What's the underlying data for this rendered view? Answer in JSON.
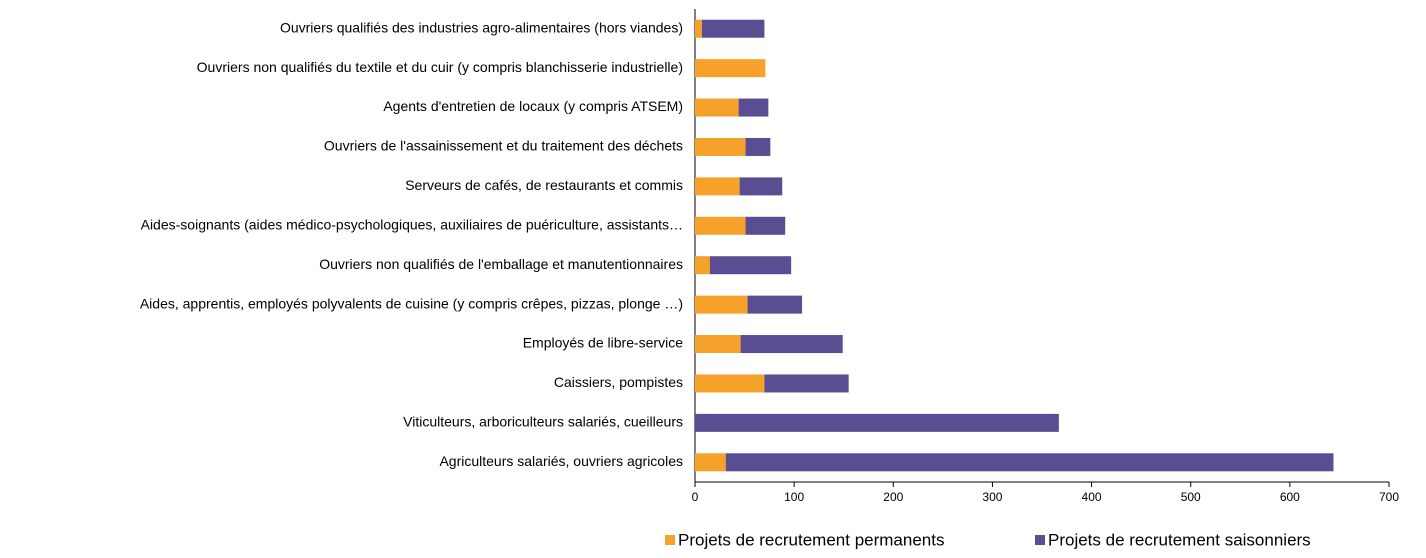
{
  "chart_data": {
    "type": "stacked-barh",
    "categories": [
      "Ouvriers qualifiés des industries agro-alimentaires (hors viandes)",
      "Ouvriers non qualifiés du textile et du cuir (y compris blanchisserie industrielle)",
      "Agents d'entretien de locaux (y compris ATSEM)",
      "Ouvriers de l'assainissement et du traitement des déchets",
      "Serveurs de cafés, de restaurants et commis",
      "Aides-soignants (aides médico-psychologiques, auxiliaires de puériculture, assistants…",
      "Ouvriers non qualifiés de l'emballage et manutentionnaires",
      "Aides, apprentis, employés polyvalents de cuisine (y compris crêpes, pizzas, plonge …)",
      "Employés de libre-service",
      "Caissiers, pompistes",
      "Viticulteurs, arboriculteurs salariés, cueilleurs",
      "Agriculteurs salariés, ouvriers agricoles"
    ],
    "series": [
      {
        "name": "Projets de recrutement permanents",
        "color": "#f5a12a",
        "values": [
          7,
          71,
          44,
          51,
          45,
          51,
          15,
          53,
          46,
          70,
          0,
          31
        ]
      },
      {
        "name": "Projets de recrutement saisonniers",
        "color": "#5b4d91",
        "values": [
          63,
          0,
          30,
          25,
          43,
          40,
          82,
          55,
          103,
          85,
          367,
          613
        ]
      }
    ],
    "xlim": [
      0,
      700
    ],
    "xticks": [
      0,
      100,
      200,
      300,
      400,
      500,
      600,
      700
    ],
    "legend": "bottom"
  }
}
